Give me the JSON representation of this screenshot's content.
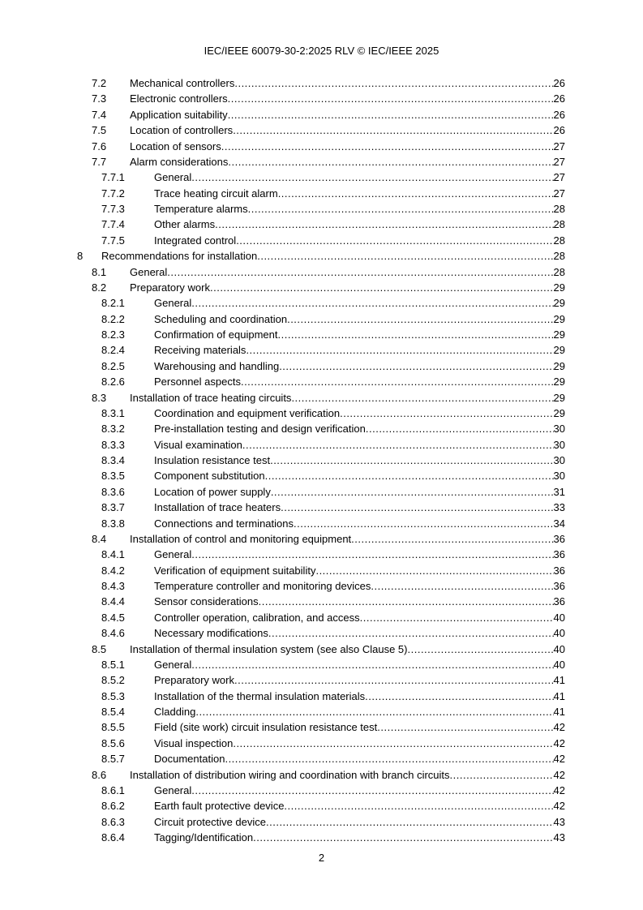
{
  "header": "IEC/IEEE 60079-30-2:2025 RLV © IEC/IEEE 2025",
  "footer_page": "2",
  "toc": [
    {
      "level": 2,
      "num": "7.2",
      "title": "Mechanical controllers",
      "page": "26"
    },
    {
      "level": 2,
      "num": "7.3",
      "title": "Electronic controllers",
      "page": "26"
    },
    {
      "level": 2,
      "num": "7.4",
      "title": "Application suitability",
      "page": "26"
    },
    {
      "level": 2,
      "num": "7.5",
      "title": "Location of controllers",
      "page": "26"
    },
    {
      "level": 2,
      "num": "7.6",
      "title": "Location of sensors",
      "page": "27"
    },
    {
      "level": 2,
      "num": "7.7",
      "title": "Alarm considerations",
      "page": "27"
    },
    {
      "level": 3,
      "num": "7.7.1",
      "title": "General",
      "page": "27"
    },
    {
      "level": 3,
      "num": "7.7.2",
      "title": "Trace heating circuit alarm",
      "page": "27"
    },
    {
      "level": 3,
      "num": "7.7.3",
      "title": "Temperature alarms",
      "page": "28"
    },
    {
      "level": 3,
      "num": "7.7.4",
      "title": "Other alarms",
      "page": "28"
    },
    {
      "level": 3,
      "num": "7.7.5",
      "title": "Integrated control",
      "page": "28"
    },
    {
      "level": 1,
      "num": "8",
      "title": "Recommendations for installation",
      "page": "28"
    },
    {
      "level": 2,
      "num": "8.1",
      "title": "General",
      "page": "28"
    },
    {
      "level": 2,
      "num": "8.2",
      "title": "Preparatory work",
      "page": "29"
    },
    {
      "level": 3,
      "num": "8.2.1",
      "title": "General",
      "page": "29"
    },
    {
      "level": 3,
      "num": "8.2.2",
      "title": "Scheduling and coordination",
      "page": "29"
    },
    {
      "level": 3,
      "num": "8.2.3",
      "title": "Confirmation of equipment",
      "page": "29"
    },
    {
      "level": 3,
      "num": "8.2.4",
      "title": "Receiving materials",
      "page": "29"
    },
    {
      "level": 3,
      "num": "8.2.5",
      "title": "Warehousing and handling",
      "page": "29"
    },
    {
      "level": 3,
      "num": "8.2.6",
      "title": "Personnel aspects",
      "page": "29"
    },
    {
      "level": 2,
      "num": "8.3",
      "title": "Installation of trace heating circuits",
      "page": "29"
    },
    {
      "level": 3,
      "num": "8.3.1",
      "title": "Coordination and equipment verification",
      "page": "29"
    },
    {
      "level": 3,
      "num": "8.3.2",
      "title": "Pre-installation testing and design verification",
      "page": "30"
    },
    {
      "level": 3,
      "num": "8.3.3",
      "title": "Visual examination",
      "page": "30"
    },
    {
      "level": 3,
      "num": "8.3.4",
      "title": "Insulation resistance test",
      "page": "30"
    },
    {
      "level": 3,
      "num": "8.3.5",
      "title": "Component substitution",
      "page": "30"
    },
    {
      "level": 3,
      "num": "8.3.6",
      "title": "Location of power supply",
      "page": "31"
    },
    {
      "level": 3,
      "num": "8.3.7",
      "title": "Installation of trace heaters",
      "page": "33"
    },
    {
      "level": 3,
      "num": "8.3.8",
      "title": "Connections and terminations",
      "page": "34"
    },
    {
      "level": 2,
      "num": "8.4",
      "title": "Installation of control and monitoring equipment",
      "page": "36"
    },
    {
      "level": 3,
      "num": "8.4.1",
      "title": "General",
      "page": "36"
    },
    {
      "level": 3,
      "num": "8.4.2",
      "title": "Verification of equipment suitability",
      "page": "36"
    },
    {
      "level": 3,
      "num": "8.4.3",
      "title": "Temperature controller and monitoring devices",
      "page": "36"
    },
    {
      "level": 3,
      "num": "8.4.4",
      "title": "Sensor considerations",
      "page": "36"
    },
    {
      "level": 3,
      "num": "8.4.5",
      "title": "Controller operation, calibration, and access",
      "page": "40"
    },
    {
      "level": 3,
      "num": "8.4.6",
      "title": "Necessary modifications",
      "page": "40"
    },
    {
      "level": 2,
      "num": "8.5",
      "title": "Installation of thermal insulation system (see also Clause 5)",
      "page": "40"
    },
    {
      "level": 3,
      "num": "8.5.1",
      "title": "General",
      "page": "40"
    },
    {
      "level": 3,
      "num": "8.5.2",
      "title": "Preparatory work",
      "page": "41"
    },
    {
      "level": 3,
      "num": "8.5.3",
      "title": "Installation of the thermal insulation materials",
      "page": "41"
    },
    {
      "level": 3,
      "num": "8.5.4",
      "title": "Cladding",
      "page": "41"
    },
    {
      "level": 3,
      "num": "8.5.5",
      "title": "Field (site work) circuit insulation resistance test",
      "page": "42"
    },
    {
      "level": 3,
      "num": "8.5.6",
      "title": "Visual inspection",
      "page": "42"
    },
    {
      "level": 3,
      "num": "8.5.7",
      "title": "Documentation",
      "page": "42"
    },
    {
      "level": 2,
      "num": "8.6",
      "title": "Installation of distribution wiring and coordination with branch circuits",
      "page": "42"
    },
    {
      "level": 3,
      "num": "8.6.1",
      "title": "General",
      "page": "42"
    },
    {
      "level": 3,
      "num": "8.6.2",
      "title": "Earth fault protective device",
      "page": "42"
    },
    {
      "level": 3,
      "num": "8.6.3",
      "title": "Circuit protective device",
      "page": "43"
    },
    {
      "level": 3,
      "num": "8.6.4",
      "title": "Tagging/Identification",
      "page": "43"
    }
  ]
}
